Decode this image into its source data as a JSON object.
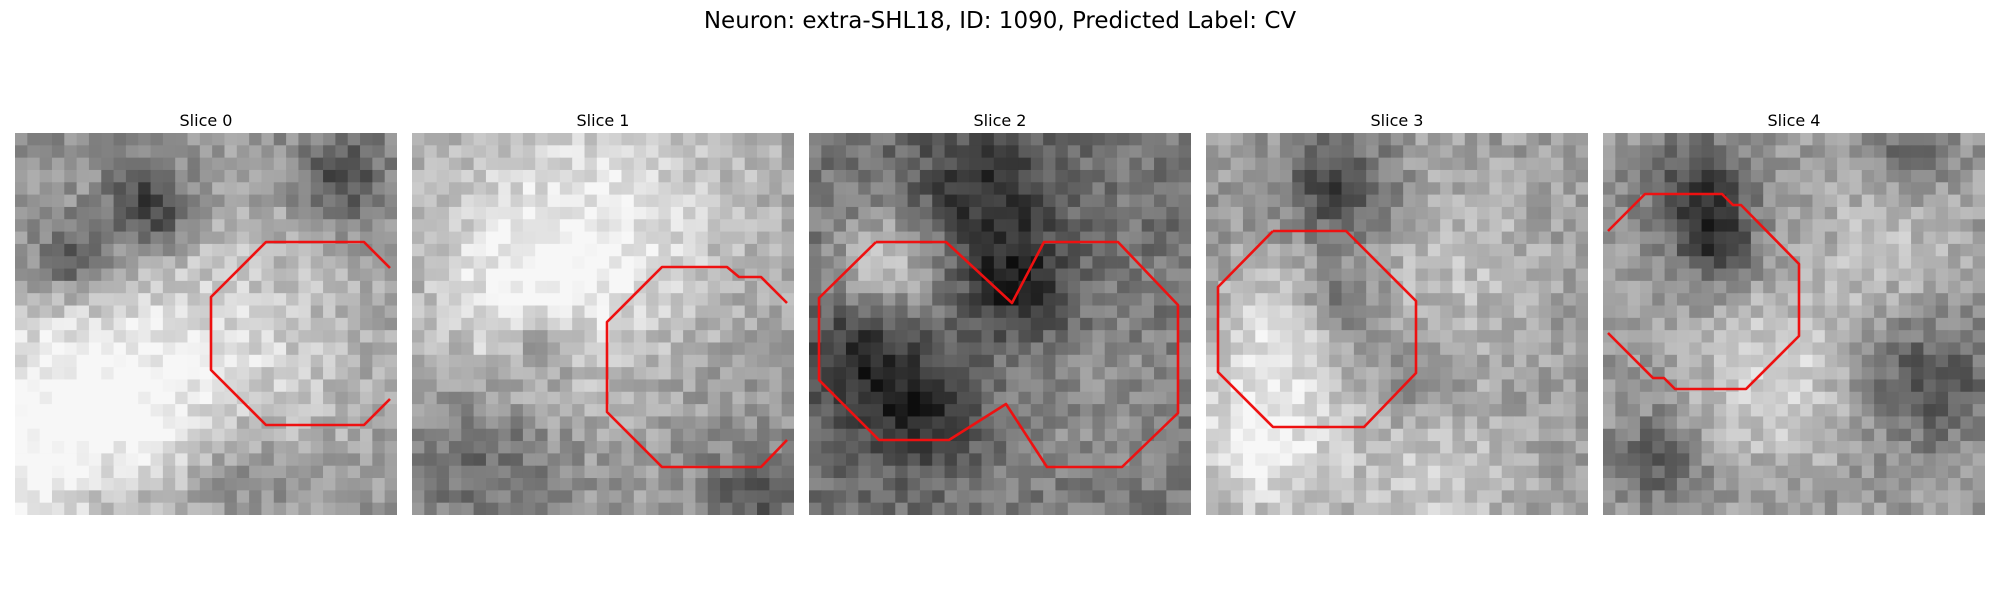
{
  "figure": {
    "title": "Neuron: extra-SHL18, ID: 1090, Predicted Label: CV",
    "overlay_color": "#ee1111",
    "colormap": "grayscale",
    "panels": [
      {
        "label": "Slice 0"
      },
      {
        "label": "Slice 1"
      },
      {
        "label": "Slice 2"
      },
      {
        "label": "Slice 3"
      },
      {
        "label": "Slice 4"
      }
    ]
  }
}
